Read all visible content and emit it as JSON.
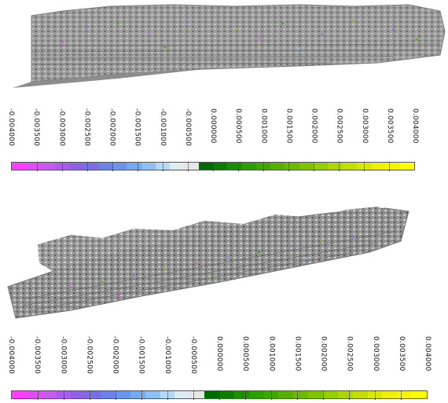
{
  "scales": [
    {
      "id": "top",
      "tick_labels": [
        "-0.004000",
        "-0.003500",
        "-0.003000",
        "-0.002500",
        "-0.002000",
        "-0.001500",
        "-0.001000",
        "-0.000500",
        "0.000000",
        "0.000500",
        "0.001000",
        "0.001500",
        "0.002000",
        "0.002500",
        "0.003000",
        "0.003500",
        "0.004000"
      ],
      "bin_colors": [
        "#ff3cff",
        "#e24cf6",
        "#c85af0",
        "#aa5cea",
        "#8f61e7",
        "#7a6ee6",
        "#6c82ea",
        "#6a95ee",
        "#75a9f1",
        "#8fc0f4",
        "#b4d9f6",
        "#dcecf2",
        "#e6e6e6",
        "#006b00",
        "#0a7d00",
        "#1a8f00",
        "#2ca000",
        "#3fa800",
        "#55b000",
        "#6aba00",
        "#80c400",
        "#96ce00",
        "#acd700",
        "#c3df00",
        "#d9e800",
        "#eef000",
        "#f5f500",
        "#ffff00"
      ]
    },
    {
      "id": "bottom",
      "tick_labels": [
        "-0.004000",
        "-0.003500",
        "-0.003000",
        "-0.002500",
        "-0.002000",
        "-0.001500",
        "-0.001000",
        "-0.000500",
        "0.000000",
        "0.000500",
        "0.001000",
        "0.001500",
        "0.002000",
        "0.002500",
        "0.003000",
        "0.003500",
        "0.004000"
      ],
      "bin_colors": [
        "#ff3cff",
        "#e24cf6",
        "#c85af0",
        "#aa5cea",
        "#8f61e7",
        "#7a6ee6",
        "#6c82ea",
        "#6a95ee",
        "#75a9f1",
        "#8fc0f4",
        "#b4d9f6",
        "#dcecf2",
        "#e6e6e6",
        "#006b00",
        "#0a7d00",
        "#1a8f00",
        "#2ca000",
        "#3fa800",
        "#55b000",
        "#6aba00",
        "#80c400",
        "#96ce00",
        "#acd700",
        "#c3df00",
        "#d9e800",
        "#eef000",
        "#f5f500",
        "#ffff00"
      ]
    }
  ]
}
